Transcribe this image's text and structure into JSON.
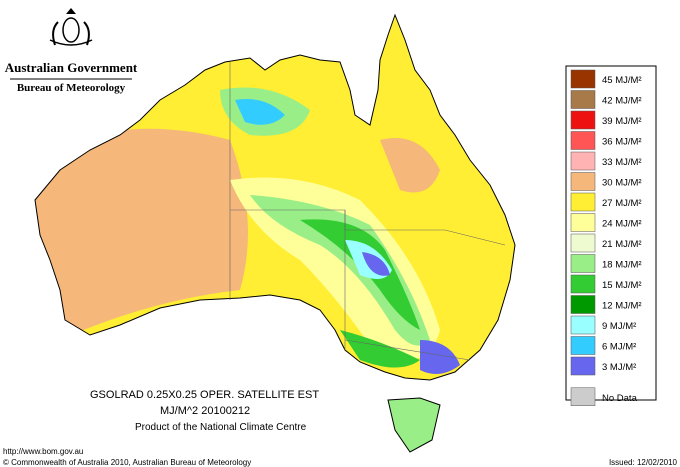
{
  "header": {
    "government": "Australian Government",
    "bureau": "Bureau of Meteorology"
  },
  "map": {
    "line1": "GSOLRAD   0.25X0.25 OPER. SATELLITE EST",
    "line2": "MJ/M^2  20100212",
    "line3": "Product of the National Climate Centre"
  },
  "legend": {
    "items": [
      {
        "label": "45 MJ/M²",
        "color": "#993300"
      },
      {
        "label": "42 MJ/M²",
        "color": "#a87a4a"
      },
      {
        "label": "39 MJ/M²",
        "color": "#ee1111"
      },
      {
        "label": "36 MJ/M²",
        "color": "#ff5555"
      },
      {
        "label": "33 MJ/M²",
        "color": "#ffb3b3"
      },
      {
        "label": "30 MJ/M²",
        "color": "#f5b77a"
      },
      {
        "label": "27 MJ/M²",
        "color": "#ffee33"
      },
      {
        "label": "24 MJ/M²",
        "color": "#ffff99"
      },
      {
        "label": "21 MJ/M²",
        "color": "#eefad0"
      },
      {
        "label": "18 MJ/M²",
        "color": "#99ee88"
      },
      {
        "label": "15 MJ/M²",
        "color": "#33cc33"
      },
      {
        "label": "12 MJ/M²",
        "color": "#009900"
      },
      {
        "label": "9 MJ/M²",
        "color": "#99ffff"
      },
      {
        "label": "6 MJ/M²",
        "color": "#33ccff"
      },
      {
        "label": "3 MJ/M²",
        "color": "#6666ee"
      },
      {
        "label": "No Data",
        "color": "#cccccc"
      }
    ]
  },
  "footer": {
    "url": "http://www.bom.gov.au",
    "copyright": "© Commonwealth of Australia 2010, Australian Bureau of Meteorology",
    "issued": "Issued: 12/02/2010"
  }
}
